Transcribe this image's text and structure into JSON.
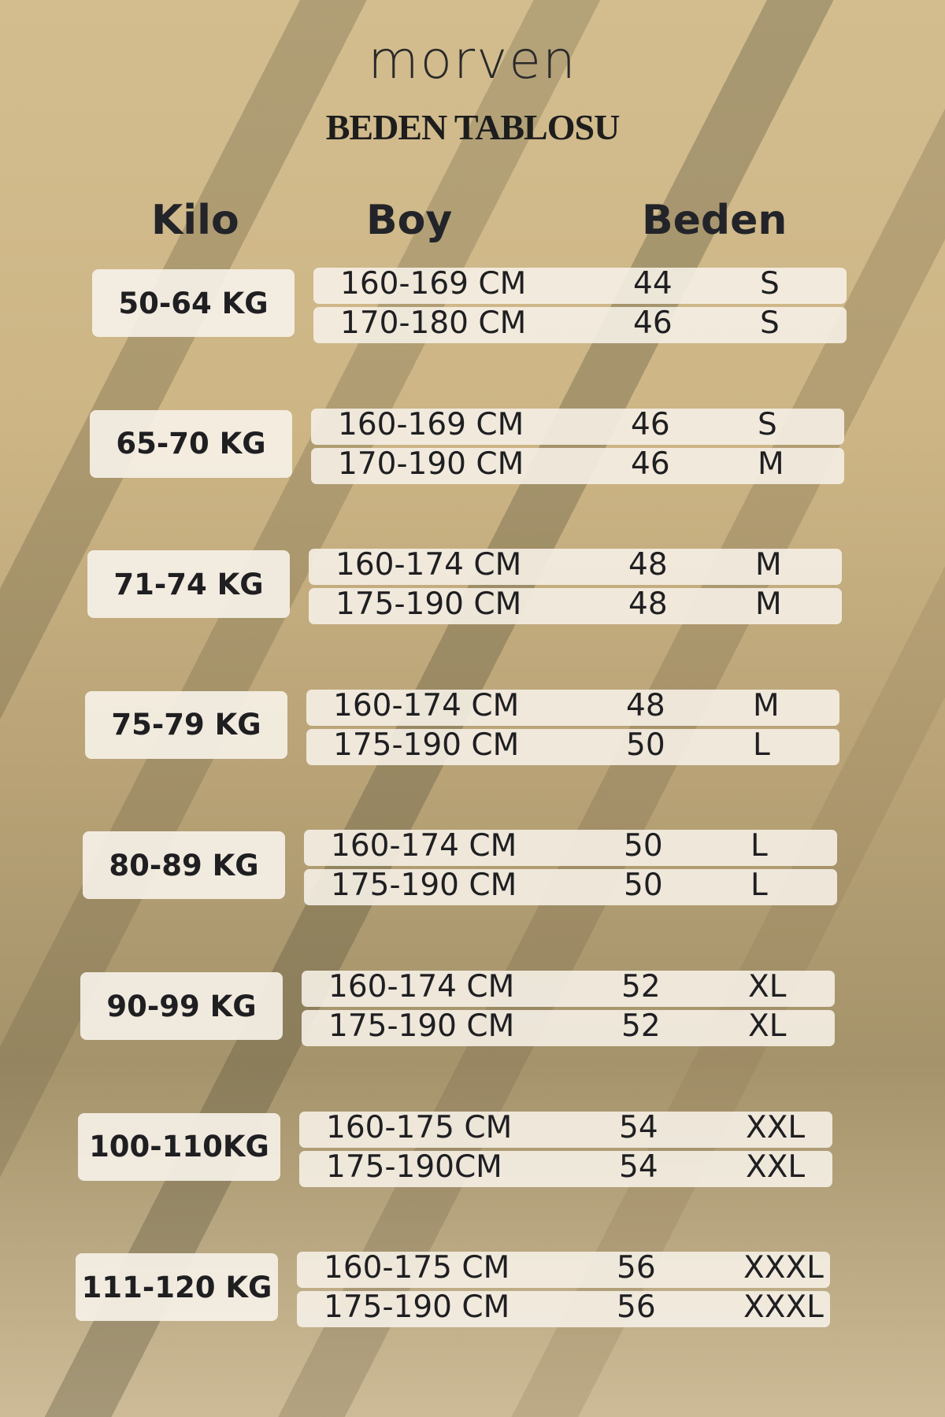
{
  "brand": "morven",
  "title": "BEDEN TABLOSU",
  "headers": {
    "kilo": "Kilo",
    "boy": "Boy",
    "beden": "Beden"
  },
  "colors": {
    "background": "#cdb585",
    "stripe": "#8d7f5c",
    "box": "#f5f0e6",
    "text": "#1f1f22"
  },
  "groups": [
    {
      "kilo": "50-64 KG",
      "rows": [
        {
          "boy": "160-169 CM",
          "num": "44",
          "size": "S"
        },
        {
          "boy": "170-180 CM",
          "num": "46",
          "size": "S"
        }
      ]
    },
    {
      "kilo": "65-70 KG",
      "rows": [
        {
          "boy": "160-169 CM",
          "num": "46",
          "size": "S"
        },
        {
          "boy": "170-190 CM",
          "num": "46",
          "size": "M"
        }
      ]
    },
    {
      "kilo": "71-74 KG",
      "rows": [
        {
          "boy": "160-174 CM",
          "num": "48",
          "size": "M"
        },
        {
          "boy": "175-190 CM",
          "num": "48",
          "size": "M"
        }
      ]
    },
    {
      "kilo": "75-79 KG",
      "rows": [
        {
          "boy": "160-174 CM",
          "num": "48",
          "size": "M"
        },
        {
          "boy": "175-190 CM",
          "num": "50",
          "size": "L"
        }
      ]
    },
    {
      "kilo": "80-89 KG",
      "rows": [
        {
          "boy": "160-174 CM",
          "num": "50",
          "size": "L"
        },
        {
          "boy": "175-190 CM",
          "num": "50",
          "size": "L"
        }
      ]
    },
    {
      "kilo": "90-99 KG",
      "rows": [
        {
          "boy": "160-174 CM",
          "num": "52",
          "size": "XL"
        },
        {
          "boy": "175-190 CM",
          "num": "52",
          "size": "XL"
        }
      ]
    },
    {
      "kilo": "100-110KG",
      "rows": [
        {
          "boy": "160-175 CM",
          "num": "54",
          "size": "XXL"
        },
        {
          "boy": "175-190CM",
          "num": "54",
          "size": "XXL"
        }
      ]
    },
    {
      "kilo": "111-120 KG",
      "rows": [
        {
          "boy": "160-175 CM",
          "num": "56",
          "size": "XXXL"
        },
        {
          "boy": "175-190 CM",
          "num": "56",
          "size": "XXXL"
        }
      ]
    }
  ]
}
